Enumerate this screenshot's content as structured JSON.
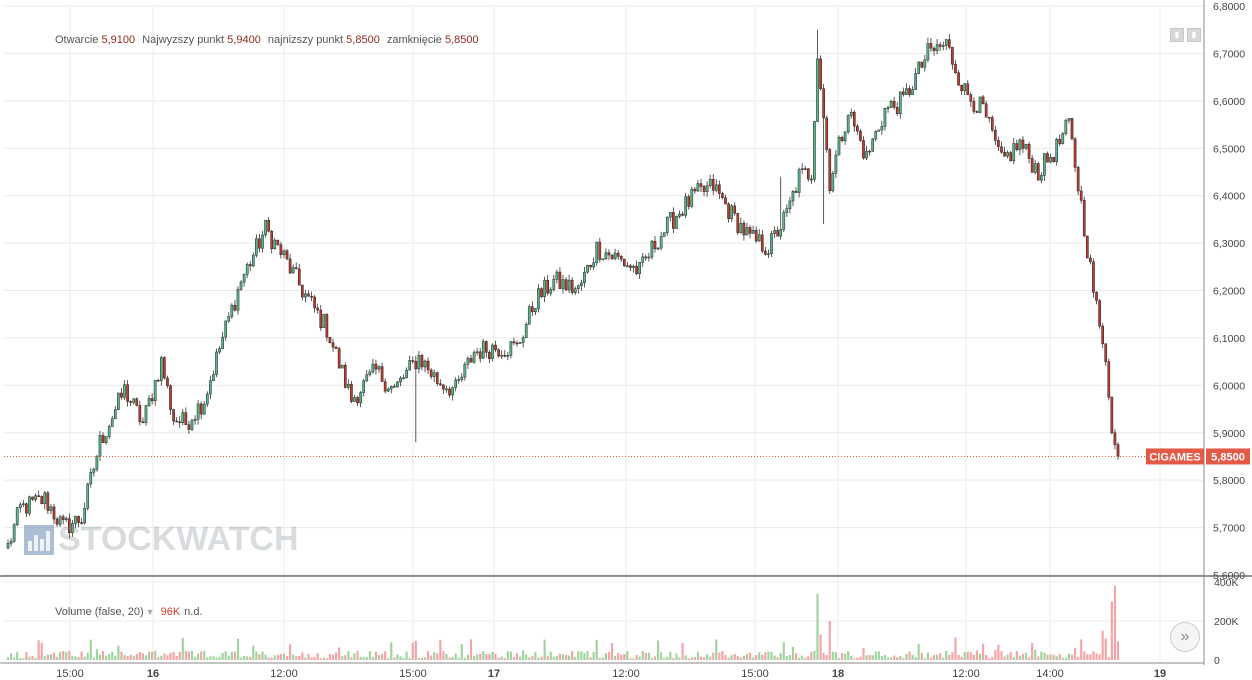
{
  "legend": {
    "open_label": "Otwarcie",
    "open_value": "5,9100",
    "high_label": "Najwyzszy punkt",
    "high_value": "5,9400",
    "low_label": "najnizszy punkt",
    "low_value": "5,8500",
    "close_label": "zamknięcie",
    "close_value": "5,8500"
  },
  "volume_legend": {
    "label": "Volume (false, 20)",
    "value": "96K",
    "extra": "n.d."
  },
  "watermark": "STOCKWATCH",
  "icons": {
    "scroll": "double-chevron-right-icon",
    "buttons": [
      "pane-button-icon",
      "pane-button-icon"
    ]
  },
  "colors": {
    "up": "#53b987",
    "down": "#c0392b",
    "vol_up": "#9fd39c",
    "vol_down": "#f4a3a6",
    "last": "#e25a46"
  },
  "chart_data": [
    {
      "type": "candlestick",
      "ticker": "CIGAMES",
      "last_price": 5.85,
      "last_price_label": "5,8500",
      "y_ticks": [
        "5,6000",
        "5,7000",
        "5,8000",
        "5,9000",
        "6,0000",
        "6,1000",
        "6,2000",
        "6,3000",
        "6,4000",
        "6,5000",
        "6,6000",
        "6,7000",
        "6,8000"
      ],
      "ylim": [
        5.6,
        6.8
      ],
      "x_ticks": [
        "15:00",
        "16",
        "12:00",
        "15:00",
        "17",
        "12:00",
        "15:00",
        "18",
        "12:00",
        "14:00",
        "19"
      ],
      "grid": true,
      "anchors": [
        [
          0,
          5.66
        ],
        [
          4,
          5.74
        ],
        [
          12,
          5.76
        ],
        [
          18,
          5.7
        ],
        [
          24,
          5.72
        ],
        [
          30,
          5.88
        ],
        [
          38,
          5.99
        ],
        [
          44,
          5.92
        ],
        [
          50,
          6.05
        ],
        [
          54,
          5.93
        ],
        [
          58,
          5.92
        ],
        [
          64,
          5.97
        ],
        [
          70,
          6.1
        ],
        [
          76,
          6.22
        ],
        [
          84,
          6.33
        ],
        [
          90,
          6.27
        ],
        [
          96,
          6.2
        ],
        [
          104,
          6.12
        ],
        [
          112,
          5.97
        ],
        [
          120,
          6.03
        ],
        [
          126,
          5.99
        ],
        [
          134,
          6.06
        ],
        [
          140,
          6.01
        ],
        [
          146,
          5.99
        ],
        [
          152,
          6.07
        ],
        [
          158,
          6.08
        ],
        [
          166,
          6.08
        ],
        [
          172,
          6.18
        ],
        [
          178,
          6.22
        ],
        [
          186,
          6.2
        ],
        [
          192,
          6.29
        ],
        [
          198,
          6.27
        ],
        [
          206,
          6.24
        ],
        [
          212,
          6.31
        ],
        [
          218,
          6.36
        ],
        [
          224,
          6.4
        ],
        [
          230,
          6.42
        ],
        [
          236,
          6.36
        ],
        [
          242,
          6.31
        ],
        [
          248,
          6.29
        ],
        [
          254,
          6.36
        ],
        [
          258,
          6.44
        ],
        [
          262,
          6.45
        ],
        [
          264,
          6.7
        ],
        [
          268,
          6.43
        ],
        [
          274,
          6.58
        ],
        [
          280,
          6.48
        ],
        [
          286,
          6.58
        ],
        [
          292,
          6.6
        ],
        [
          300,
          6.7
        ],
        [
          306,
          6.72
        ],
        [
          312,
          6.62
        ],
        [
          318,
          6.58
        ],
        [
          324,
          6.47
        ],
        [
          330,
          6.51
        ],
        [
          336,
          6.45
        ],
        [
          342,
          6.5
        ],
        [
          346,
          6.55
        ],
        [
          350,
          6.38
        ],
        [
          354,
          6.2
        ],
        [
          358,
          6.05
        ],
        [
          360,
          5.9
        ],
        [
          362,
          5.85
        ]
      ],
      "bar_count": 363,
      "high_spikes": [
        [
          264,
          6.75
        ],
        [
          252,
          6.44
        ]
      ],
      "low_spikes": [
        [
          133,
          5.88
        ],
        [
          266,
          6.34
        ]
      ]
    },
    {
      "type": "bar",
      "series": "Volume",
      "y_ticks": [
        "0",
        "200K",
        "400K"
      ],
      "ylim": [
        0,
        400000
      ],
      "last_value": 96000,
      "notable": [
        [
          264,
          340000
        ],
        [
          268,
          200000
        ],
        [
          360,
          300000
        ],
        [
          361,
          380000
        ],
        [
          357,
          150000
        ],
        [
          358,
          110000
        ]
      ]
    }
  ]
}
